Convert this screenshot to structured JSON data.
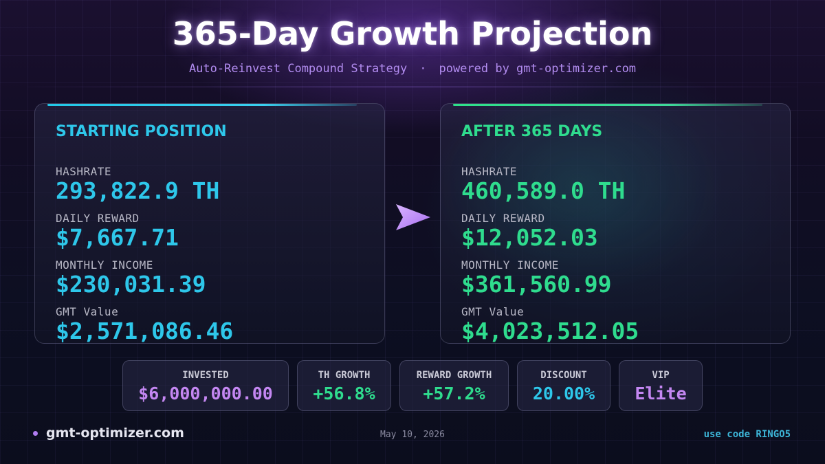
{
  "header": {
    "title": "365-Day Growth Projection",
    "subtitle_left": "Auto-Reinvest Compound Strategy",
    "subtitle_sep": "·",
    "subtitle_right": "powered by gmt-optimizer.com"
  },
  "start": {
    "heading": "STARTING POSITION",
    "stats": [
      {
        "label": "HASHRATE",
        "value": "293,822.9 TH"
      },
      {
        "label": "DAILY REWARD",
        "value": "$7,667.71"
      },
      {
        "label": "MONTHLY INCOME",
        "value": "$230,031.39"
      },
      {
        "label": "GMT Value",
        "value": "$2,571,086.46"
      }
    ]
  },
  "end": {
    "heading": "AFTER 365 DAYS",
    "stats": [
      {
        "label": "HASHRATE",
        "value": "460,589.0 TH"
      },
      {
        "label": "DAILY REWARD",
        "value": "$12,052.03"
      },
      {
        "label": "MONTHLY INCOME",
        "value": "$361,560.99"
      },
      {
        "label": "GMT Value",
        "value": "$4,023,512.05"
      }
    ]
  },
  "arrow_icon": "arrow-right-icon",
  "pills": [
    {
      "label": "INVESTED",
      "value": "$6,000,000.00"
    },
    {
      "label": "TH GROWTH",
      "value": "+56.8%"
    },
    {
      "label": "REWARD GROWTH",
      "value": "+57.2%"
    },
    {
      "label": "DISCOUNT",
      "value": "20.00%"
    },
    {
      "label": "VIP",
      "value": "Elite"
    }
  ],
  "footer": {
    "brand": "gmt-optimizer.com",
    "date": "May 10, 2026",
    "code": "use code RINGO5"
  },
  "colors": {
    "cyan": "#2ec7ea",
    "green": "#2fdc8e",
    "purple": "#c487f2"
  }
}
